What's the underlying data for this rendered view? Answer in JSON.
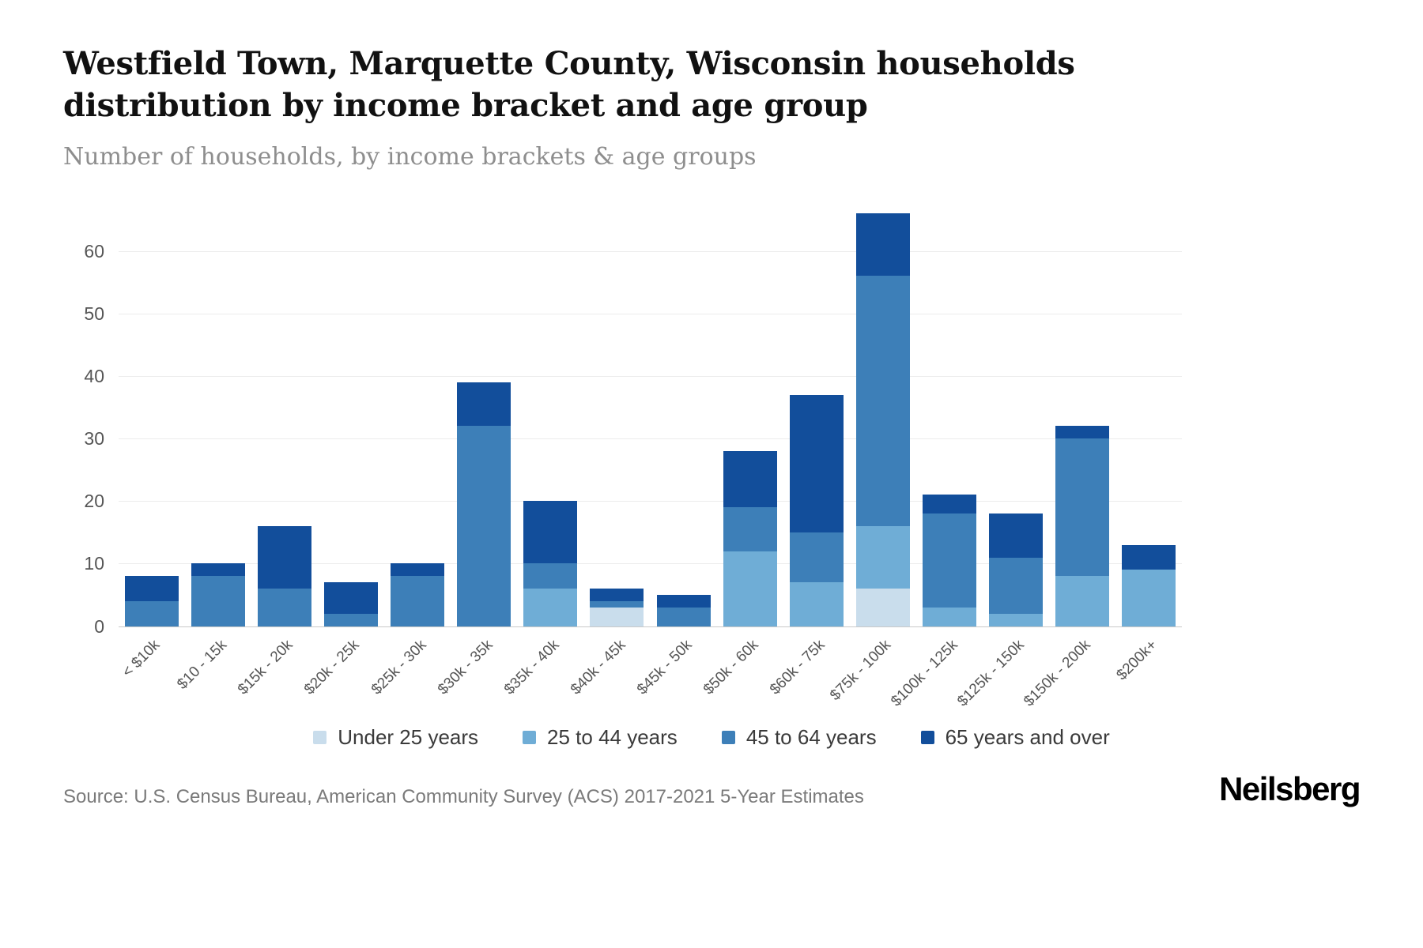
{
  "header": {
    "title_line1": "Westfield Town, Marquette County, Wisconsin households",
    "title_line2": "distribution by income bracket and age group",
    "subtitle": "Number of households, by income brackets & age groups"
  },
  "footer": {
    "source": "Source: U.S. Census Bureau, American Community Survey (ACS) 2017-2021 5-Year Estimates",
    "brand": "Neilsberg"
  },
  "chart_data": {
    "type": "bar",
    "stacked": true,
    "title": "Westfield Town, Marquette County, Wisconsin households distribution by income bracket and age group",
    "xlabel": "",
    "ylabel": "Number of households",
    "ylim": [
      0,
      66
    ],
    "yticks": [
      0,
      10,
      20,
      30,
      40,
      50,
      60
    ],
    "grid": true,
    "legend_position": "bottom",
    "categories": [
      "< $10k",
      "$10 - 15k",
      "$15k - 20k",
      "$20k - 25k",
      "$25k - 30k",
      "$30k - 35k",
      "$35k - 40k",
      "$40k - 45k",
      "$45k - 50k",
      "$50k - 60k",
      "$60k - 75k",
      "$75k - 100k",
      "$100k - 125k",
      "$125k - 150k",
      "$150k - 200k",
      "$200k+"
    ],
    "series": [
      {
        "name": "Under 25 years",
        "color": "#c9ddec",
        "values": [
          0,
          0,
          0,
          0,
          0,
          0,
          0,
          3,
          0,
          0,
          0,
          6,
          0,
          0,
          0,
          0
        ]
      },
      {
        "name": "25 to 44 years",
        "color": "#6fadd6",
        "values": [
          0,
          0,
          0,
          0,
          0,
          0,
          6,
          0,
          0,
          12,
          7,
          10,
          3,
          2,
          8,
          9
        ]
      },
      {
        "name": "45 to 64 years",
        "color": "#3d7fb8",
        "values": [
          4,
          8,
          6,
          2,
          8,
          32,
          4,
          1,
          3,
          7,
          8,
          40,
          15,
          9,
          22,
          0
        ]
      },
      {
        "name": "65 years and over",
        "color": "#124e9b",
        "values": [
          4,
          2,
          10,
          5,
          2,
          7,
          10,
          2,
          2,
          9,
          22,
          10,
          3,
          7,
          2,
          4
        ]
      }
    ]
  }
}
